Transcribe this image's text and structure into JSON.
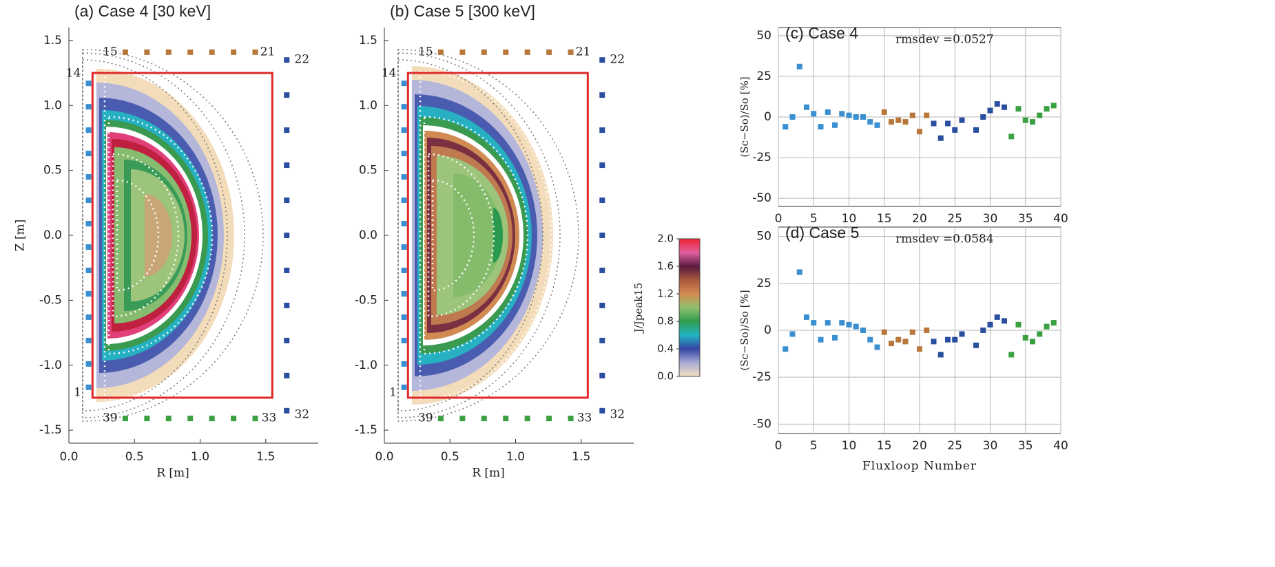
{
  "chart_data": [
    {
      "type": "contour",
      "title": "(a) Case 4  [30 keV]",
      "xlabel": "R [m]",
      "ylabel": "Z [m]",
      "xlim": [
        0,
        1.9
      ],
      "ylim": [
        -1.6,
        1.6
      ],
      "xticks": [
        {
          "value": 0,
          "label": "0.0"
        },
        0.5,
        {
          "value": 1,
          "label": "1.0"
        },
        1.5
      ],
      "yticks": [
        -1.5,
        {
          "value": -1,
          "label": "-1.0"
        },
        -0.5,
        {
          "value": 0,
          "label": "0.0"
        },
        0.5,
        {
          "value": 1,
          "label": "1.0"
        },
        1.5
      ],
      "vessel": {
        "color": "#e02828",
        "r": [
          0.18,
          1.55
        ],
        "z": [
          -1.25,
          1.25
        ]
      },
      "loops": [
        {
          "color": "#3a8fd0",
          "r": [
            0.15,
            0.15,
            0.15,
            0.15,
            0.15,
            0.15,
            0.15,
            0.15,
            0.15,
            0.15,
            0.15,
            0.15,
            0.15,
            0.15
          ],
          "z": [
            -1.17,
            -0.99,
            -0.81,
            -0.63,
            -0.45,
            -0.27,
            -0.09,
            0.09,
            0.27,
            0.45,
            0.63,
            0.81,
            0.99,
            1.17
          ]
        },
        {
          "color": "#b8783a",
          "r": [
            0.43,
            0.595,
            0.76,
            0.925,
            1.09,
            1.255,
            1.42
          ],
          "z": [
            1.41,
            1.41,
            1.41,
            1.41,
            1.41,
            1.41,
            1.41
          ]
        },
        {
          "color": "#2a4ea0",
          "r": [
            1.66,
            1.66,
            1.66,
            1.66,
            1.66,
            1.66,
            1.66,
            1.66,
            1.66,
            1.66,
            1.66
          ],
          "z": [
            1.35,
            1.08,
            0.81,
            0.54,
            0.27,
            0,
            -0.27,
            -0.54,
            -0.81,
            -1.08,
            -1.35
          ]
        },
        {
          "color": "#3aa040",
          "r": [
            1.42,
            1.255,
            1.09,
            0.925,
            0.76,
            0.595,
            0.43
          ],
          "z": [
            -1.41,
            -1.41,
            -1.41,
            -1.41,
            -1.41,
            -1.41,
            -1.41
          ]
        }
      ],
      "loop_labels": [
        1,
        14,
        15,
        21,
        22,
        32,
        33,
        39
      ]
    },
    {
      "type": "contour",
      "title": "(b) Case 5  [300 keV]",
      "xlabel": "R [m]",
      "xlim": [
        0,
        1.9
      ],
      "ylim": [
        -1.6,
        1.6
      ],
      "xticks": [
        {
          "value": 0,
          "label": "0.0"
        },
        0.5,
        {
          "value": 1,
          "label": "1.0"
        },
        1.5
      ],
      "yticks": [
        -1.5,
        {
          "value": -1,
          "label": "-1.0"
        },
        -0.5,
        {
          "value": 0,
          "label": "0.0"
        },
        0.5,
        {
          "value": 1,
          "label": "1.0"
        },
        1.5
      ],
      "vessel": {
        "color": "#e02828",
        "r": [
          0.18,
          1.55
        ],
        "z": [
          -1.25,
          1.25
        ]
      },
      "loops": [
        {
          "color": "#3a8fd0",
          "r": [
            0.15,
            0.15,
            0.15,
            0.15,
            0.15,
            0.15,
            0.15,
            0.15,
            0.15,
            0.15,
            0.15,
            0.15,
            0.15,
            0.15
          ],
          "z": [
            -1.17,
            -0.99,
            -0.81,
            -0.63,
            -0.45,
            -0.27,
            -0.09,
            0.09,
            0.27,
            0.45,
            0.63,
            0.81,
            0.99,
            1.17
          ]
        },
        {
          "color": "#b8783a",
          "r": [
            0.43,
            0.595,
            0.76,
            0.925,
            1.09,
            1.255,
            1.42
          ],
          "z": [
            1.41,
            1.41,
            1.41,
            1.41,
            1.41,
            1.41,
            1.41
          ]
        },
        {
          "color": "#2a4ea0",
          "r": [
            1.66,
            1.66,
            1.66,
            1.66,
            1.66,
            1.66,
            1.66,
            1.66,
            1.66,
            1.66,
            1.66
          ],
          "z": [
            1.35,
            1.08,
            0.81,
            0.54,
            0.27,
            0,
            -0.27,
            -0.54,
            -0.81,
            -1.08,
            -1.35
          ]
        },
        {
          "color": "#3aa040",
          "r": [
            1.42,
            1.255,
            1.09,
            0.925,
            0.76,
            0.595,
            0.43
          ],
          "z": [
            -1.41,
            -1.41,
            -1.41,
            -1.41,
            -1.41,
            -1.41,
            -1.41
          ]
        }
      ],
      "loop_labels": [
        1,
        14,
        15,
        21,
        22,
        32,
        33,
        39
      ]
    },
    {
      "type": "colorbar",
      "label": "J/Jpeak15",
      "clim": [
        0,
        2
      ],
      "ticks": [
        {
          "value": 0,
          "label": "0.0"
        },
        0.4,
        0.8,
        1.2,
        1.6,
        {
          "value": 2,
          "label": "2.0"
        }
      ],
      "colors": [
        "#f6e0bd",
        "#a7abd4",
        "#3544a4",
        "#22b4c4",
        "#2f9c4c",
        "#8fc06c",
        "#d68a52",
        "#a85a3c",
        "#5a1a40",
        "#e060a0",
        "#f02030"
      ]
    },
    {
      "type": "scatter",
      "annotation": "(c) Case 4",
      "note": "rmsdev =0.0527",
      "ylabel": "(Sc−So)/So [%]",
      "xlim": [
        0,
        40
      ],
      "ylim": [
        -55,
        55
      ],
      "xticks": [
        0,
        5,
        10,
        15,
        20,
        25,
        30,
        35,
        40
      ],
      "yticks": [
        -50,
        -25,
        0,
        25,
        50
      ],
      "grid": true,
      "series": [
        {
          "color": "#3a8fd0",
          "x": [
            1,
            2,
            3,
            4,
            5,
            6,
            7,
            8,
            9,
            10,
            11,
            12,
            13,
            14
          ],
          "values": [
            -6,
            0,
            31,
            6,
            2,
            -6,
            3,
            -5,
            2,
            1,
            0,
            0,
            -3,
            -5
          ]
        },
        {
          "color": "#b8783a",
          "x": [
            15,
            16,
            17,
            18,
            19,
            20,
            21
          ],
          "values": [
            3,
            -3,
            -2,
            -3,
            1,
            -9,
            1
          ]
        },
        {
          "color": "#2a4ea0",
          "x": [
            22,
            23,
            24,
            25,
            26,
            28,
            29,
            30,
            31,
            32
          ],
          "values": [
            -4,
            -13,
            -4,
            -8,
            -2,
            -8,
            0,
            4,
            8,
            6
          ]
        },
        {
          "color": "#3aa040",
          "x": [
            33,
            34,
            35,
            36,
            37,
            38,
            39
          ],
          "values": [
            -12,
            5,
            -2,
            -3,
            1,
            5,
            7
          ]
        }
      ]
    },
    {
      "type": "scatter",
      "annotation": "(d) Case 5",
      "note": "rmsdev =0.0584",
      "ylabel": "(Sc−So)/So [%]",
      "xlabel": "Fluxloop Number",
      "xlim": [
        0,
        40
      ],
      "ylim": [
        -55,
        55
      ],
      "xticks": [
        0,
        5,
        10,
        15,
        20,
        25,
        30,
        35,
        40
      ],
      "yticks": [
        -50,
        -25,
        0,
        25,
        50
      ],
      "grid": true,
      "series": [
        {
          "color": "#3a8fd0",
          "x": [
            1,
            2,
            3,
            4,
            5,
            6,
            7,
            8,
            9,
            10,
            11,
            12,
            13,
            14
          ],
          "values": [
            -10,
            -2,
            31,
            7,
            4,
            -5,
            4,
            -4,
            4,
            3,
            2,
            0,
            -5,
            -9
          ]
        },
        {
          "color": "#b8783a",
          "x": [
            15,
            16,
            17,
            18,
            19,
            20,
            21
          ],
          "values": [
            -1,
            -7,
            -5,
            -6,
            -1,
            -10,
            0
          ]
        },
        {
          "color": "#2a4ea0",
          "x": [
            22,
            23,
            24,
            25,
            26,
            28,
            29,
            30,
            31,
            32
          ],
          "values": [
            -6,
            -13,
            -5,
            -5,
            -2,
            -8,
            0,
            3,
            7,
            5
          ]
        },
        {
          "color": "#3aa040",
          "x": [
            33,
            34,
            35,
            36,
            37,
            38,
            39
          ],
          "values": [
            -13,
            3,
            -4,
            -6,
            -2,
            2,
            4
          ]
        }
      ]
    }
  ]
}
